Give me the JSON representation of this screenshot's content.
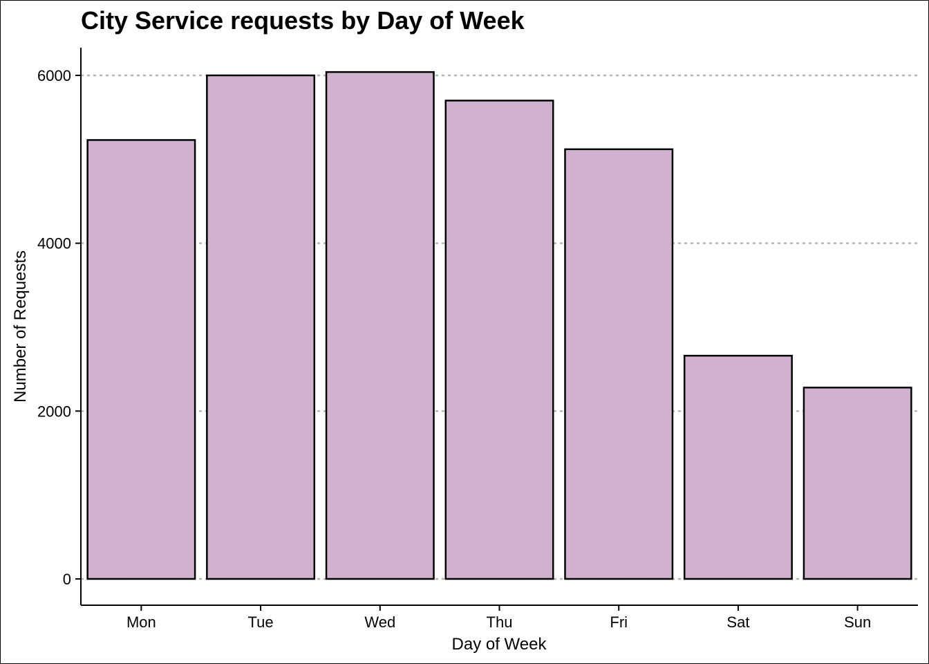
{
  "chart_data": {
    "type": "bar",
    "title": "City Service requests by Day of Week",
    "xlabel": "Day of Week",
    "ylabel": "Number of Requests",
    "categories": [
      "Mon",
      "Tue",
      "Wed",
      "Thu",
      "Fri",
      "Sat",
      "Sun"
    ],
    "values": [
      5230,
      6000,
      6040,
      5700,
      5120,
      2660,
      2280
    ],
    "ylim": [
      -300,
      6300
    ],
    "yticks": [
      0,
      2000,
      4000,
      6000
    ],
    "ytick_labels": [
      "0",
      "2000",
      "4000",
      "6000"
    ],
    "grid": "horizontal dotted major lines",
    "bar_fill": "#d0b2d0",
    "bar_edge": "#000000",
    "grid_color": "#b3b3b3"
  }
}
